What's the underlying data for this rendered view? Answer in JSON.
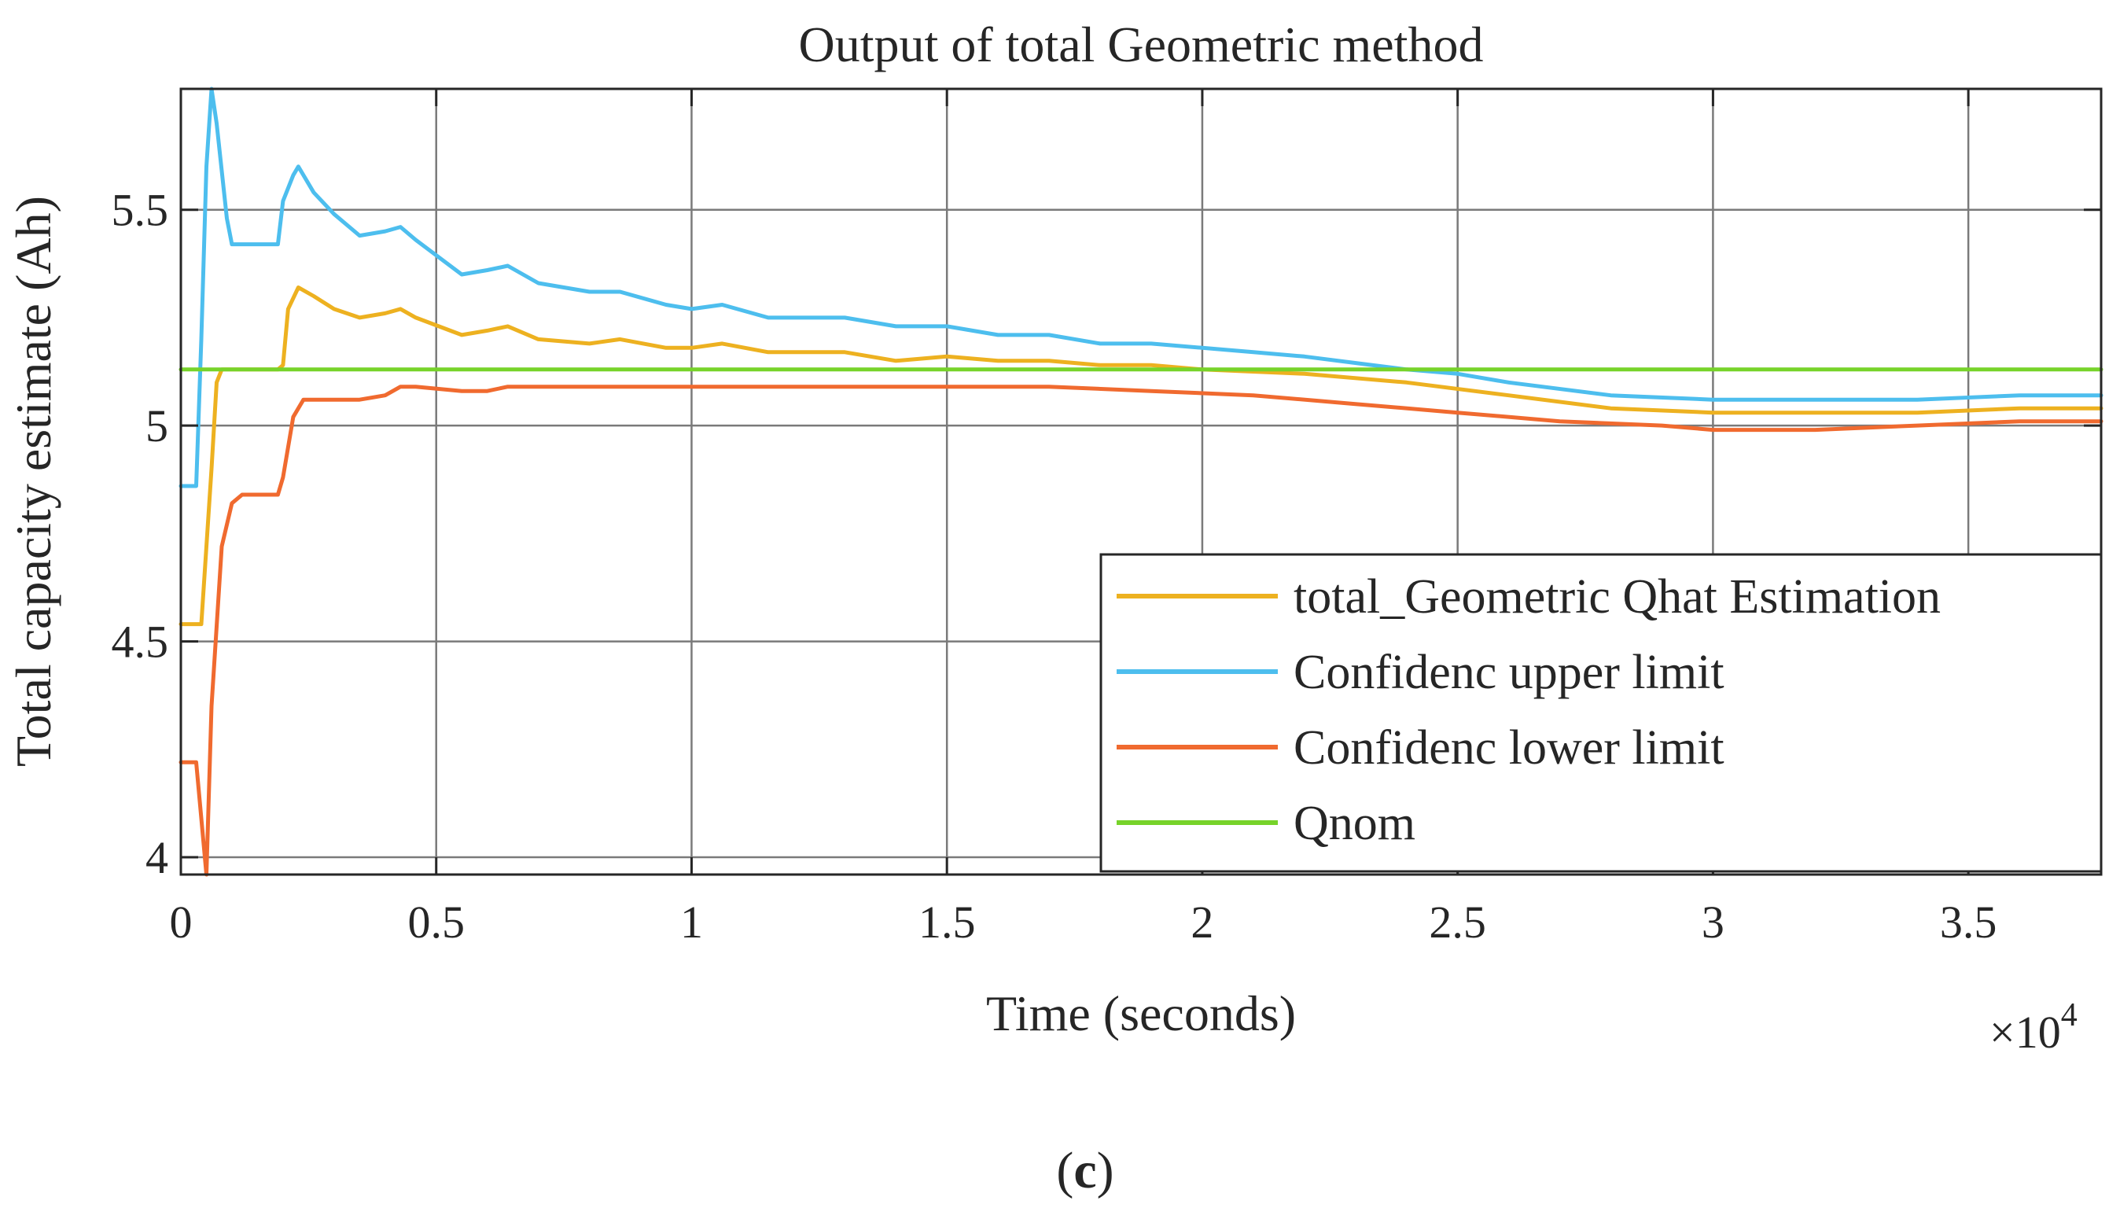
{
  "chart_data": {
    "type": "line",
    "title": "Output of total Geometric method",
    "xlabel": "Time (seconds)",
    "ylabel": "Total capacity estimate (Ah)",
    "x_multiplier_base": "×10",
    "x_multiplier_exp": "4",
    "xlim": [
      0,
      3.76
    ],
    "ylim": [
      3.96,
      5.78
    ],
    "x_ticks": [
      0,
      0.5,
      1,
      1.5,
      2,
      2.5,
      3,
      3.5
    ],
    "x_tick_labels": [
      "0",
      "0.5",
      "1",
      "1.5",
      "2",
      "2.5",
      "3",
      "3.5"
    ],
    "y_ticks": [
      4,
      4.5,
      5,
      5.5
    ],
    "y_tick_labels": [
      "4",
      "4.5",
      "5",
      "5.5"
    ],
    "grid": true,
    "legend_position": "bottom-right",
    "series": [
      {
        "name": "total_Geometric Qhat Estimation",
        "color": "#EDB120",
        "points": [
          [
            0,
            4.54
          ],
          [
            0.04,
            4.54
          ],
          [
            0.06,
            4.9
          ],
          [
            0.07,
            5.1
          ],
          [
            0.08,
            5.13
          ],
          [
            0.1,
            5.13
          ],
          [
            0.19,
            5.13
          ],
          [
            0.2,
            5.14
          ],
          [
            0.21,
            5.27
          ],
          [
            0.23,
            5.32
          ],
          [
            0.26,
            5.3
          ],
          [
            0.3,
            5.27
          ],
          [
            0.35,
            5.25
          ],
          [
            0.4,
            5.26
          ],
          [
            0.43,
            5.27
          ],
          [
            0.46,
            5.25
          ],
          [
            0.55,
            5.21
          ],
          [
            0.6,
            5.22
          ],
          [
            0.64,
            5.23
          ],
          [
            0.7,
            5.2
          ],
          [
            0.8,
            5.19
          ],
          [
            0.86,
            5.2
          ],
          [
            0.95,
            5.18
          ],
          [
            1.0,
            5.18
          ],
          [
            1.06,
            5.19
          ],
          [
            1.15,
            5.17
          ],
          [
            1.3,
            5.17
          ],
          [
            1.4,
            5.15
          ],
          [
            1.5,
            5.16
          ],
          [
            1.6,
            5.15
          ],
          [
            1.7,
            5.15
          ],
          [
            1.8,
            5.14
          ],
          [
            1.9,
            5.14
          ],
          [
            2.0,
            5.13
          ],
          [
            2.2,
            5.12
          ],
          [
            2.4,
            5.1
          ],
          [
            2.6,
            5.07
          ],
          [
            2.8,
            5.04
          ],
          [
            3.0,
            5.03
          ],
          [
            3.2,
            5.03
          ],
          [
            3.4,
            5.03
          ],
          [
            3.6,
            5.04
          ],
          [
            3.76,
            5.04
          ]
        ]
      },
      {
        "name": "Confidenc upper limit",
        "color": "#4DBEEE",
        "points": [
          [
            0,
            4.86
          ],
          [
            0.03,
            4.86
          ],
          [
            0.04,
            5.2
          ],
          [
            0.05,
            5.6
          ],
          [
            0.06,
            5.78
          ],
          [
            0.07,
            5.7
          ],
          [
            0.09,
            5.48
          ],
          [
            0.1,
            5.42
          ],
          [
            0.12,
            5.42
          ],
          [
            0.19,
            5.42
          ],
          [
            0.2,
            5.52
          ],
          [
            0.22,
            5.58
          ],
          [
            0.23,
            5.6
          ],
          [
            0.26,
            5.54
          ],
          [
            0.3,
            5.49
          ],
          [
            0.35,
            5.44
          ],
          [
            0.4,
            5.45
          ],
          [
            0.43,
            5.46
          ],
          [
            0.46,
            5.43
          ],
          [
            0.55,
            5.35
          ],
          [
            0.6,
            5.36
          ],
          [
            0.64,
            5.37
          ],
          [
            0.7,
            5.33
          ],
          [
            0.8,
            5.31
          ],
          [
            0.86,
            5.31
          ],
          [
            0.95,
            5.28
          ],
          [
            1.0,
            5.27
          ],
          [
            1.06,
            5.28
          ],
          [
            1.15,
            5.25
          ],
          [
            1.3,
            5.25
          ],
          [
            1.4,
            5.23
          ],
          [
            1.5,
            5.23
          ],
          [
            1.6,
            5.21
          ],
          [
            1.7,
            5.21
          ],
          [
            1.8,
            5.19
          ],
          [
            1.9,
            5.19
          ],
          [
            2.0,
            5.18
          ],
          [
            2.1,
            5.17
          ],
          [
            2.2,
            5.16
          ],
          [
            2.4,
            5.13
          ],
          [
            2.5,
            5.12
          ],
          [
            2.6,
            5.1
          ],
          [
            2.8,
            5.07
          ],
          [
            3.0,
            5.06
          ],
          [
            3.2,
            5.06
          ],
          [
            3.4,
            5.06
          ],
          [
            3.6,
            5.07
          ],
          [
            3.76,
            5.07
          ]
        ]
      },
      {
        "name": "Confidenc lower limit",
        "color": "#F06A2F",
        "points": [
          [
            0,
            4.22
          ],
          [
            0.03,
            4.22
          ],
          [
            0.05,
            3.96
          ],
          [
            0.06,
            4.35
          ],
          [
            0.08,
            4.72
          ],
          [
            0.1,
            4.82
          ],
          [
            0.12,
            4.84
          ],
          [
            0.19,
            4.84
          ],
          [
            0.2,
            4.88
          ],
          [
            0.22,
            5.02
          ],
          [
            0.24,
            5.06
          ],
          [
            0.3,
            5.06
          ],
          [
            0.35,
            5.06
          ],
          [
            0.4,
            5.07
          ],
          [
            0.43,
            5.09
          ],
          [
            0.46,
            5.09
          ],
          [
            0.55,
            5.08
          ],
          [
            0.6,
            5.08
          ],
          [
            0.64,
            5.09
          ],
          [
            0.8,
            5.09
          ],
          [
            1.0,
            5.09
          ],
          [
            1.2,
            5.09
          ],
          [
            1.4,
            5.09
          ],
          [
            1.5,
            5.09
          ],
          [
            1.7,
            5.09
          ],
          [
            1.9,
            5.08
          ],
          [
            2.1,
            5.07
          ],
          [
            2.3,
            5.05
          ],
          [
            2.5,
            5.03
          ],
          [
            2.7,
            5.01
          ],
          [
            2.9,
            5.0
          ],
          [
            3.0,
            4.99
          ],
          [
            3.2,
            4.99
          ],
          [
            3.4,
            5.0
          ],
          [
            3.6,
            5.01
          ],
          [
            3.76,
            5.01
          ]
        ]
      },
      {
        "name": "Qnom",
        "color": "#77D32A",
        "points": [
          [
            0,
            5.13
          ],
          [
            3.76,
            5.13
          ]
        ]
      }
    ]
  },
  "caption": {
    "open": "(",
    "letter": "c",
    "close": ")"
  }
}
